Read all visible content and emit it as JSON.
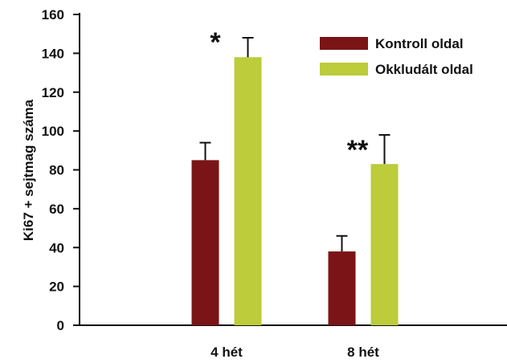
{
  "chart_data": {
    "type": "bar",
    "categories": [
      "4 hét",
      "8 hét"
    ],
    "series": [
      {
        "name": "Kontroll oldal",
        "color": "#7b1416",
        "values": [
          85,
          38
        ],
        "errors": [
          9,
          8
        ]
      },
      {
        "name": "Okkludált oldal",
        "color": "#bccc3a",
        "values": [
          138,
          83
        ],
        "errors": [
          10,
          15
        ]
      }
    ],
    "annotations": [
      "*",
      "**"
    ],
    "ylabel": "Ki67 + sejtmag  száma",
    "ylim": [
      0,
      160
    ],
    "yticks": [
      "0",
      "20",
      "40",
      "60",
      "80",
      "100",
      "120",
      "140",
      "160"
    ],
    "legend_position": "top-right",
    "grid": false
  }
}
